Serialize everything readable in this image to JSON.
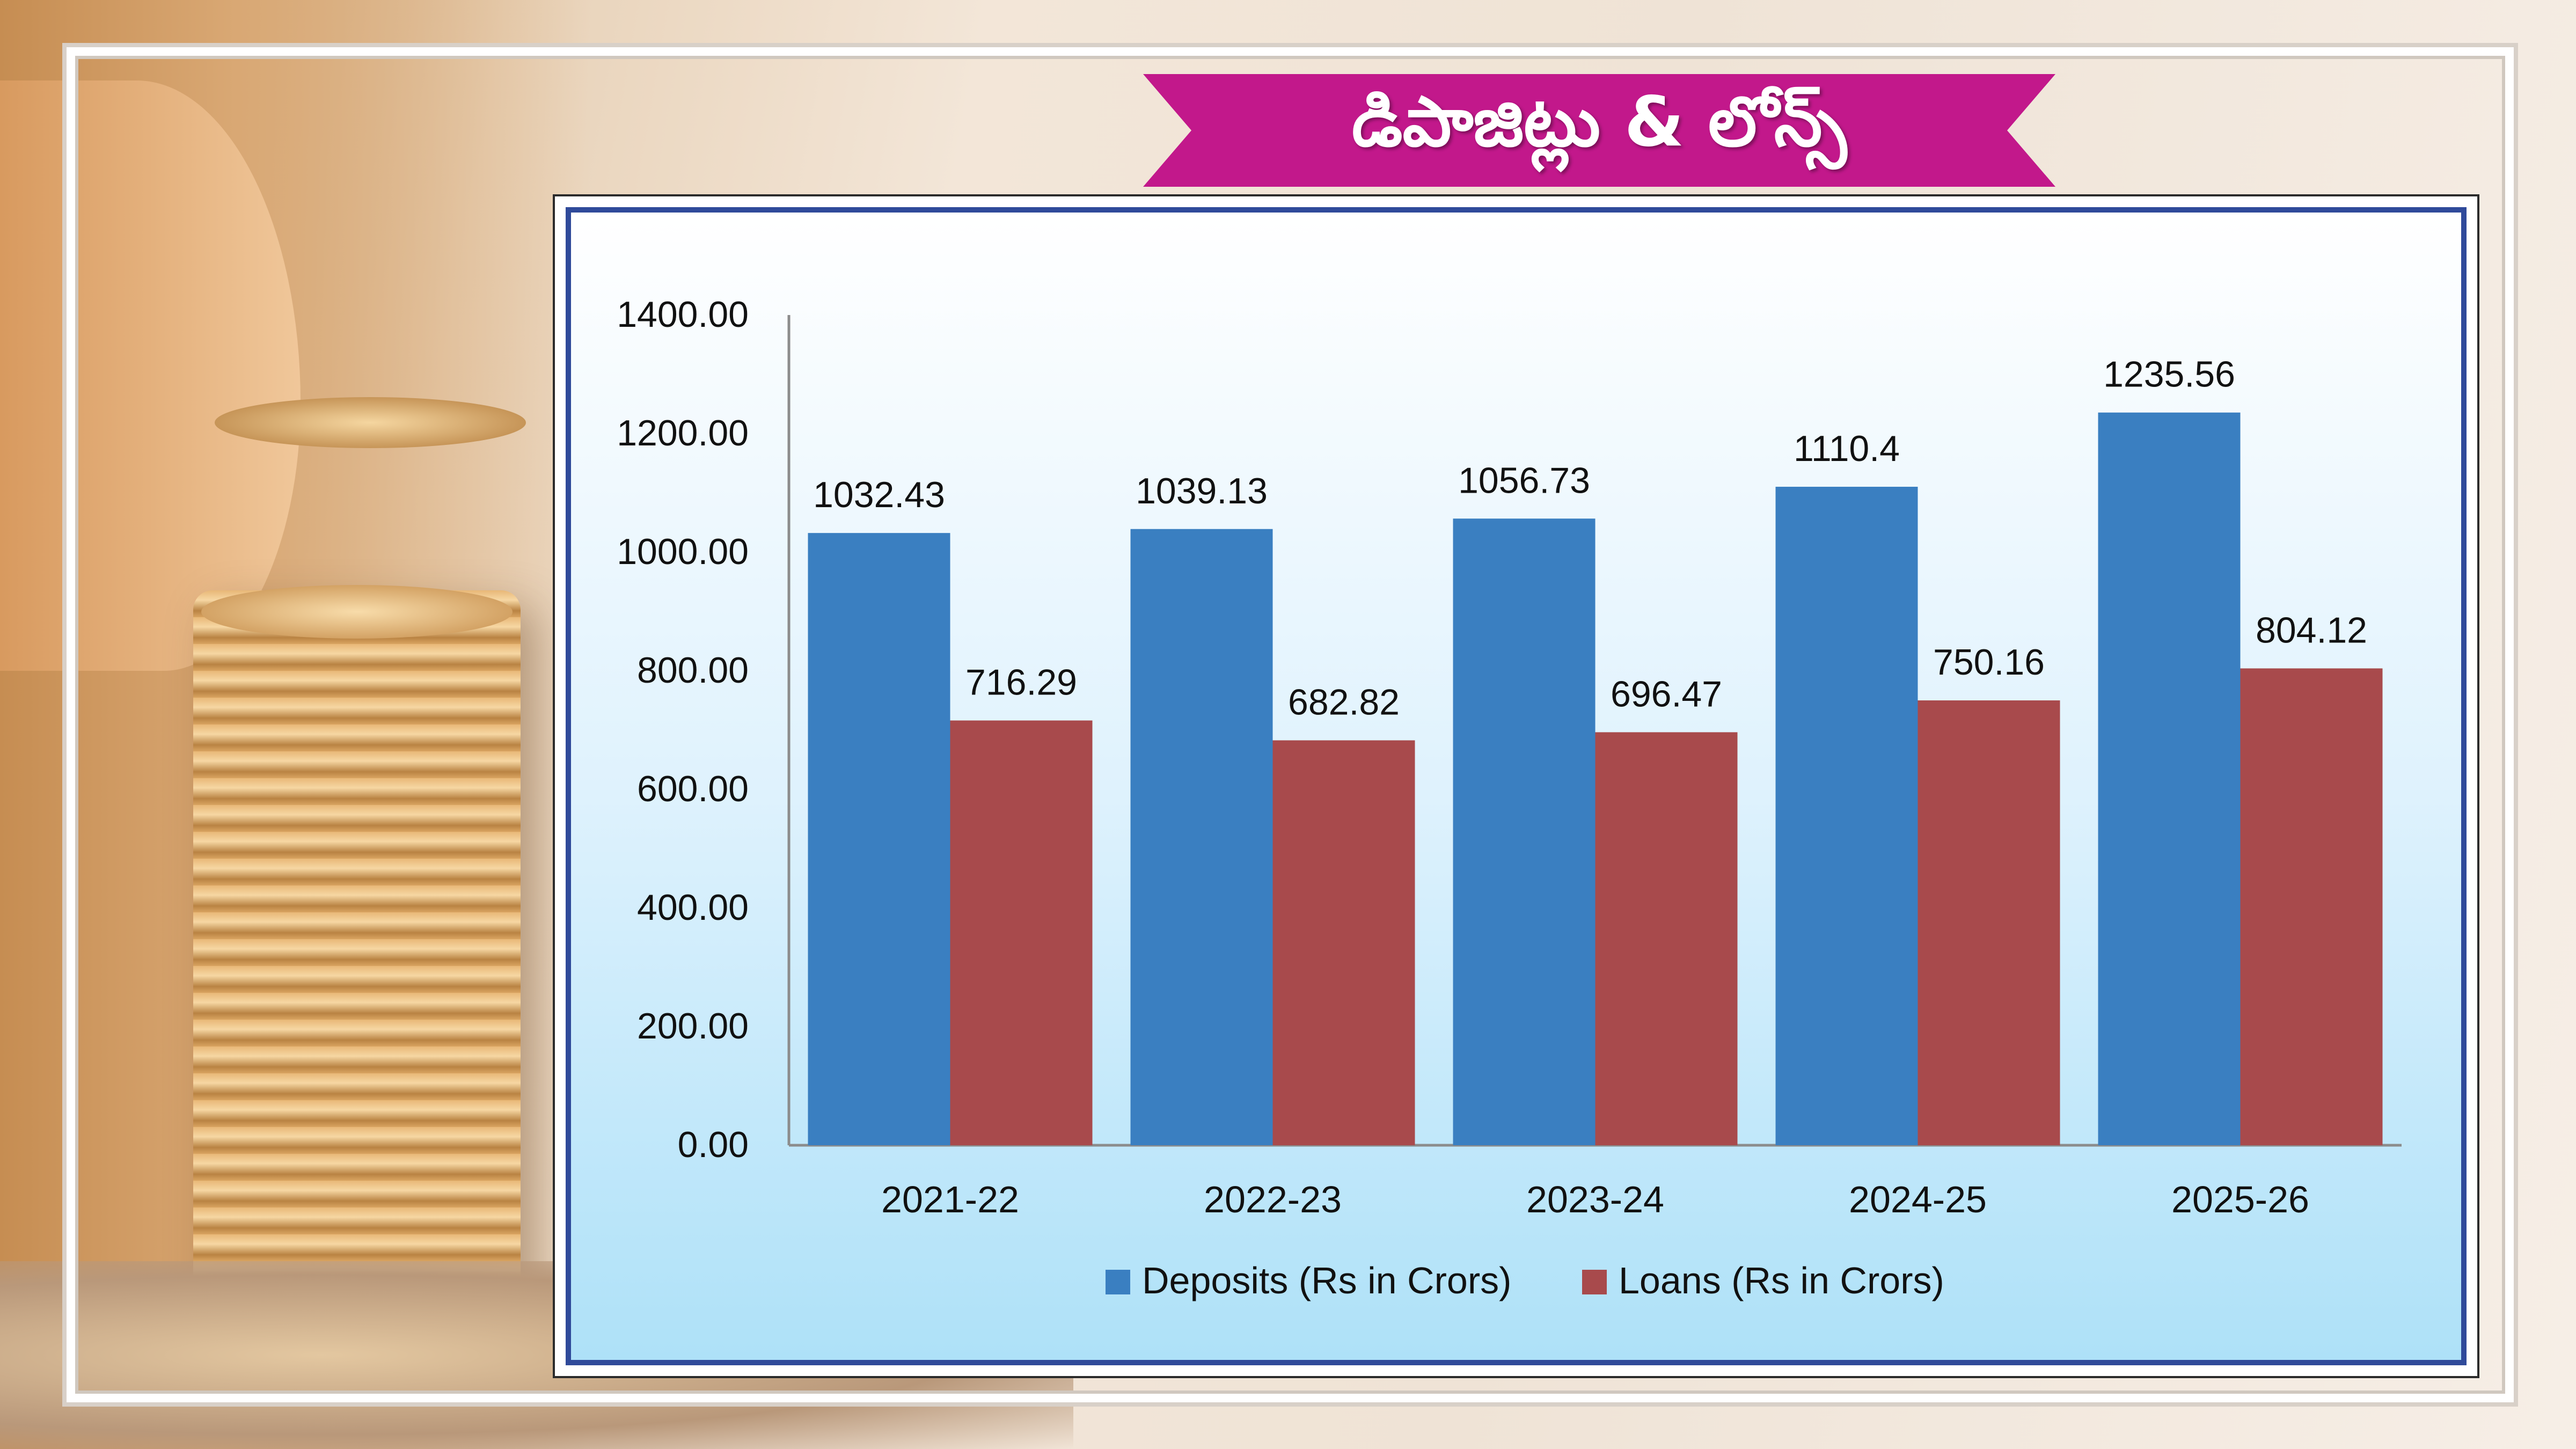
{
  "banner": {
    "title": "డిపాజిట్లు & లోన్స్",
    "color": "#c2188b"
  },
  "chart_data": {
    "type": "bar",
    "categories": [
      "2021-22",
      "2022-23",
      "2023-24",
      "2024-25",
      "2025-26"
    ],
    "series": [
      {
        "name": "Deposits (Rs in Crors)",
        "values": [
          1032.43,
          1039.13,
          1056.73,
          1110.4,
          1235.56
        ],
        "labels": [
          "1032.43",
          "1039.13",
          "1056.73",
          "1110.4",
          "1235.56"
        ],
        "color": "#3a7fc1"
      },
      {
        "name": "Loans (Rs in Crors)",
        "values": [
          716.29,
          682.82,
          696.47,
          750.16,
          804.12
        ],
        "labels": [
          "716.29",
          "682.82",
          "696.47",
          "750.16",
          "804.12"
        ],
        "color": "#a84a4c"
      }
    ],
    "ylim": [
      0,
      1400
    ],
    "yticks": [
      "0.00",
      "200.00",
      "400.00",
      "600.00",
      "800.00",
      "1000.00",
      "1200.00",
      "1400.00"
    ],
    "legend_position": "bottom",
    "grid": false
  }
}
